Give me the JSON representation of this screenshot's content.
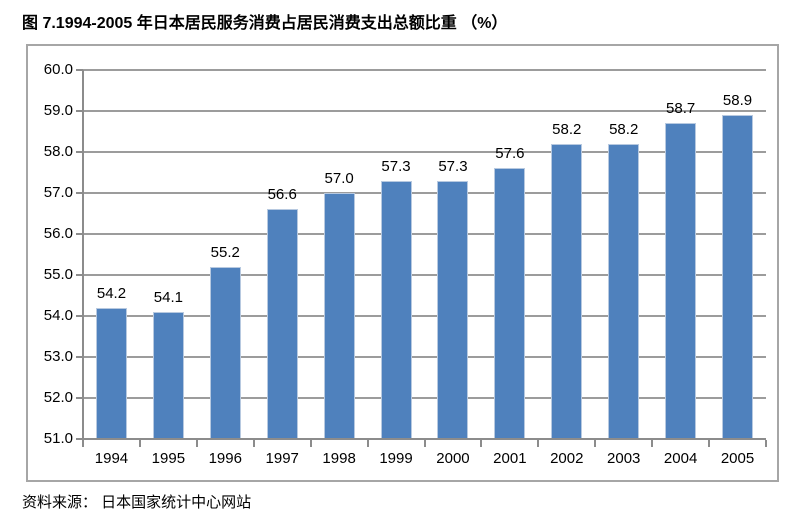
{
  "page": {
    "title": "图 7.1994-2005 年日本居民服务消费占居民消费支出总额比重 （%）",
    "source": "资料来源： 日本国家统计中心网站"
  },
  "chart_data": {
    "type": "bar",
    "title": "图 7.1994-2005 年日本居民服务消费占居民消费支出总额比重 （%）",
    "categories": [
      "1994",
      "1995",
      "1996",
      "1997",
      "1998",
      "1999",
      "2000",
      "2001",
      "2002",
      "2003",
      "2004",
      "2005"
    ],
    "values": [
      54.2,
      54.1,
      55.2,
      56.6,
      57.0,
      57.3,
      57.3,
      57.6,
      58.2,
      58.2,
      58.7,
      58.9
    ],
    "value_labels": [
      "54.2",
      "54.1",
      "55.2",
      "56.6",
      "57.0",
      "57.3",
      "57.3",
      "57.6",
      "58.2",
      "58.2",
      "58.7",
      "58.9"
    ],
    "xlabel": "",
    "ylabel": "",
    "ylim": [
      51.0,
      60.0
    ],
    "ytick_step": 1.0,
    "ytick_labels": [
      "60.0",
      "59.0",
      "58.0",
      "57.0",
      "56.0",
      "55.0",
      "54.0",
      "53.0",
      "52.0",
      "51.0"
    ],
    "grid": true,
    "legend_position": "none",
    "bar_color": "#4f81bd",
    "bar_edge_color": "#b7c9e0",
    "grid_color": "#9c9c9c",
    "axis_color": "#8c8c8c",
    "frame_color": "#a6a6a6",
    "text_color": "#000000",
    "background_color": "#ffffff"
  }
}
